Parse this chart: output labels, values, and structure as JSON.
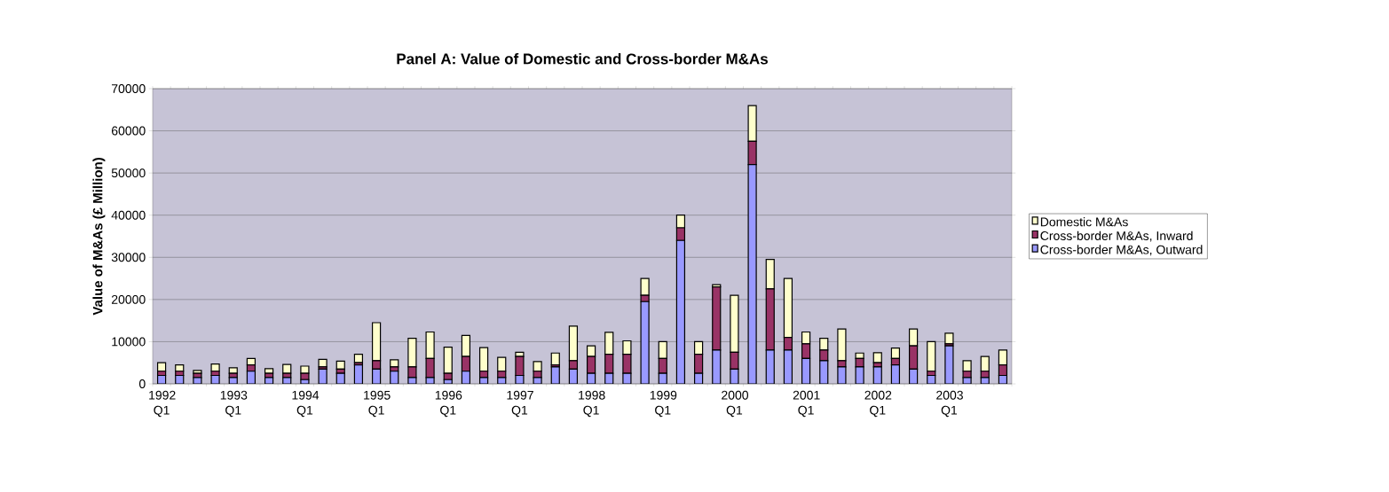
{
  "chart_data": {
    "type": "bar",
    "stacked": true,
    "title": "Panel A: Value of Domestic and Cross-border M&As",
    "ylabel": "Value of M&As (£ Million)",
    "categories": [
      "1992 Q1",
      null,
      null,
      null,
      "1993 Q1",
      null,
      null,
      null,
      "1994 Q1",
      null,
      null,
      null,
      "1995 Q1",
      null,
      null,
      null,
      "1996 Q1",
      null,
      null,
      null,
      "1997 Q1",
      null,
      null,
      null,
      "1998 Q1",
      null,
      null,
      null,
      "1999 Q1",
      null,
      null,
      null,
      "2000 Q1",
      null,
      null,
      null,
      "2001 Q1",
      null,
      null,
      null,
      "2002 Q1",
      null,
      null,
      null,
      "2003 Q1",
      null,
      null,
      null
    ],
    "series": [
      {
        "name": "Cross-border M&As, Outward",
        "color": "#9999ff",
        "values": [
          2000,
          2000,
          1500,
          2000,
          1500,
          3000,
          1500,
          1500,
          1000,
          3500,
          2500,
          4500,
          3500,
          3000,
          1500,
          1500,
          1000,
          3000,
          1500,
          1500,
          2000,
          1500,
          4000,
          3500,
          2500,
          2500,
          2500,
          19500,
          2500,
          34000,
          2500,
          8000,
          3500,
          52000,
          8000,
          8000,
          6000,
          5500,
          4000,
          4000,
          4000,
          4500,
          3500,
          2000,
          9000,
          1500,
          1500,
          2000
        ]
      },
      {
        "name": "Cross-border M&As, Inward",
        "color": "#993366",
        "values": [
          1000,
          1000,
          1000,
          1000,
          1000,
          1500,
          1000,
          1000,
          1500,
          500,
          1000,
          500,
          2000,
          1000,
          2500,
          4500,
          1500,
          3500,
          1500,
          1500,
          4500,
          1500,
          500,
          2000,
          4000,
          4500,
          4500,
          1500,
          3500,
          3000,
          4500,
          15000,
          4000,
          5500,
          14500,
          3000,
          3500,
          2500,
          1500,
          2000,
          1000,
          1500,
          5500,
          1000,
          500,
          1500,
          1500,
          2500
        ]
      },
      {
        "name": "Domestic M&As",
        "color": "#ffffcc",
        "values": [
          2000,
          1500,
          700,
          1700,
          1300,
          1500,
          1100,
          2100,
          1700,
          1800,
          1900,
          2000,
          9000,
          1700,
          6800,
          6300,
          6200,
          5000,
          5600,
          3300,
          1000,
          2300,
          2800,
          8200,
          2500,
          5200,
          3200,
          4000,
          4000,
          3000,
          3000,
          500,
          13500,
          8500,
          7000,
          14000,
          2800,
          2800,
          7500,
          1300,
          2400,
          2500,
          4000,
          7000,
          2500,
          2500,
          3500,
          3500
        ]
      }
    ],
    "ylim": [
      0,
      70000
    ],
    "yticks": [
      0,
      10000,
      20000,
      30000,
      40000,
      50000,
      60000,
      70000
    ],
    "grid": "y",
    "legend": "right"
  }
}
